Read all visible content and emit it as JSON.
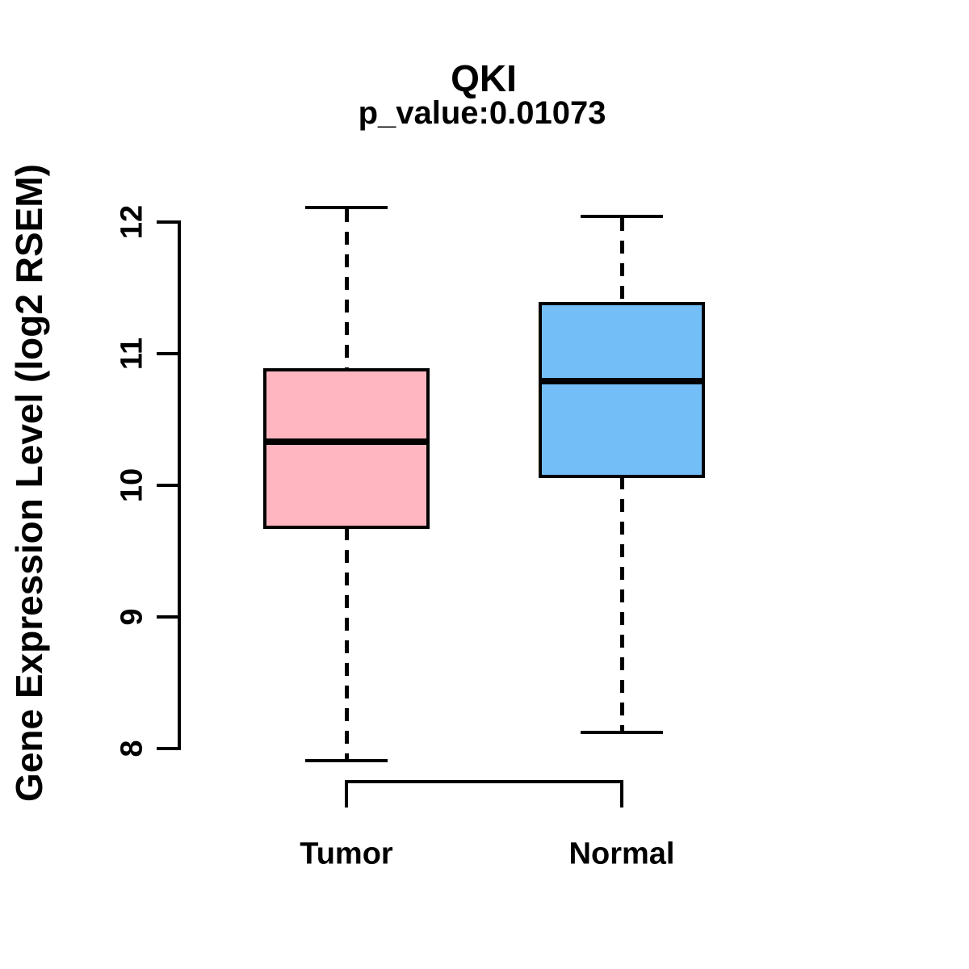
{
  "title": "QKI",
  "subtitle": "p_value:0.01073",
  "y_axis_label": "Gene Expression Level (log2 RSEM)",
  "colors": {
    "tumor_fill": "#FFB6C1",
    "normal_fill": "#74BEF8",
    "line": "#000000",
    "background": "#FFFFFF"
  },
  "chart_data": {
    "type": "boxplot",
    "title": "QKI",
    "subtitle": "p_value:0.01073",
    "ylabel": "Gene Expression Level (log2 RSEM)",
    "xlabel": "",
    "categories": [
      "Tumor",
      "Normal"
    ],
    "y_ticks": [
      8,
      9,
      10,
      11,
      12
    ],
    "y_axis_range": [
      8,
      12
    ],
    "grid": false,
    "legend": "none",
    "series": [
      {
        "name": "Tumor",
        "color": "#FFB6C1",
        "whisker_low": 7.91,
        "q1": 9.68,
        "median": 10.33,
        "q3": 10.88,
        "whisker_high": 12.11
      },
      {
        "name": "Normal",
        "color": "#74BEF8",
        "whisker_low": 8.12,
        "q1": 10.07,
        "median": 10.79,
        "q3": 11.38,
        "whisker_high": 12.04
      }
    ]
  }
}
